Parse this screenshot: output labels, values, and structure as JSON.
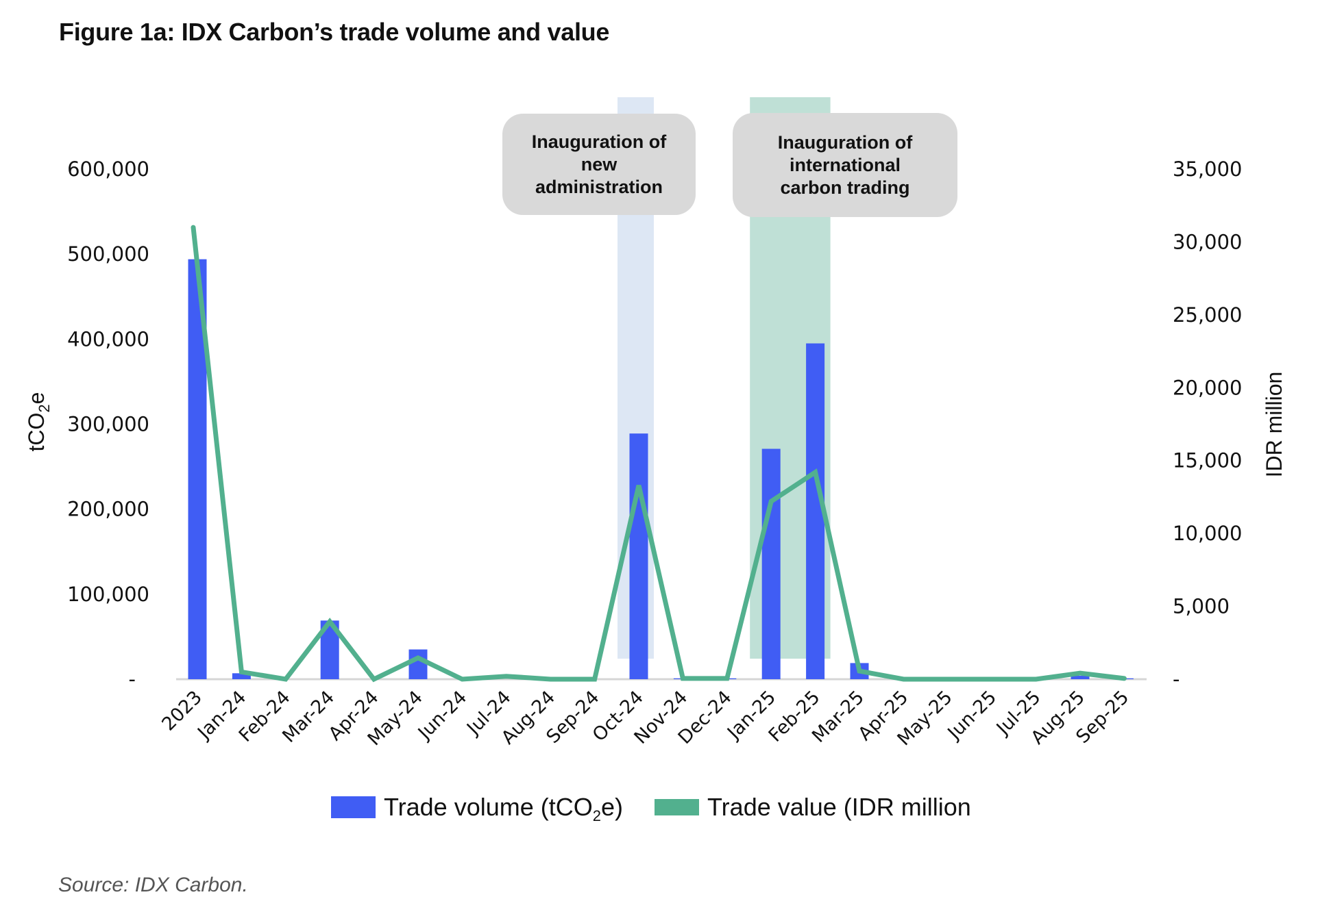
{
  "figure": {
    "title": "Figure 1a: IDX Carbon’s trade volume and value",
    "source": "Source: IDX Carbon."
  },
  "annotations": [
    {
      "lines": [
        "Inauguration of",
        "new",
        "administration"
      ],
      "band_color": "#dde7f4",
      "span": [
        "Oct-24",
        "Oct-24"
      ]
    },
    {
      "lines": [
        "Inauguration of",
        "international",
        "carbon trading"
      ],
      "band_color": "#bfe0d6",
      "span": [
        "Jan-25",
        "Feb-25"
      ]
    }
  ],
  "legend": {
    "volume_prefix": "Trade volume (tCO",
    "volume_sub": "2",
    "volume_suffix": "e)",
    "value_label": "Trade value (IDR million"
  },
  "chart_data": {
    "type": "bar+line",
    "title": "Figure 1a: IDX Carbon’s trade volume and value",
    "categories": [
      "2023",
      "Jan-24",
      "Feb-24",
      "Mar-24",
      "Apr-24",
      "May-24",
      "Jun-24",
      "Jul-24",
      "Aug-24",
      "Sep-24",
      "Oct-24",
      "Nov-24",
      "Dec-24",
      "Jan-25",
      "Feb-25",
      "Mar-25",
      "Apr-25",
      "May-25",
      "Jun-25",
      "Jul-25",
      "Aug-25",
      "Sep-25"
    ],
    "series": [
      {
        "name": "Trade volume (tCO2e)",
        "type": "bar",
        "axis": "left",
        "color": "#405df4",
        "values": [
          494000,
          7000,
          0,
          69000,
          0,
          35000,
          0,
          0,
          0,
          0,
          289000,
          1000,
          1000,
          271000,
          395000,
          19000,
          0,
          0,
          0,
          0,
          4000,
          1000
        ]
      },
      {
        "name": "Trade value (IDR million",
        "type": "line",
        "axis": "right",
        "color": "#52b08e",
        "values": [
          31000,
          500,
          0,
          3950,
          0,
          1460,
          0,
          200,
          0,
          0,
          13300,
          50,
          50,
          12200,
          14200,
          560,
          0,
          0,
          0,
          0,
          420,
          50
        ]
      }
    ],
    "y_left": {
      "label_prefix": "tCO",
      "label_sub": "2",
      "label_suffix": "e",
      "range": [
        0,
        600000
      ],
      "ticks": [
        0,
        100000,
        200000,
        300000,
        400000,
        500000,
        600000
      ],
      "tick_labels": [
        "-",
        "100,000",
        "200,000",
        "300,000",
        "400,000",
        "500,000",
        "600,000"
      ]
    },
    "y_right": {
      "label": "IDR million",
      "range": [
        0,
        35000
      ],
      "ticks": [
        0,
        5000,
        10000,
        15000,
        20000,
        25000,
        30000,
        35000
      ],
      "tick_labels": [
        "-",
        "5,000",
        "10,000",
        "15,000",
        "20,000",
        "25,000",
        "30,000",
        "35,000"
      ]
    },
    "grid": false,
    "legend_position": "bottom"
  }
}
